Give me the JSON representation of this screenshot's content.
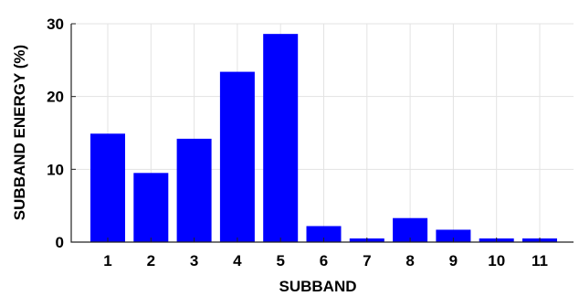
{
  "chart_data": {
    "type": "bar",
    "categories": [
      "1",
      "2",
      "3",
      "4",
      "5",
      "6",
      "7",
      "8",
      "9",
      "10",
      "11"
    ],
    "values": [
      14.9,
      9.5,
      14.2,
      23.4,
      28.6,
      2.2,
      0.5,
      3.3,
      1.7,
      0.5,
      0.5
    ],
    "title": "",
    "xlabel": "SUBBAND",
    "ylabel": "SUBBAND ENERGY (%)",
    "ylim": [
      0,
      30
    ],
    "yticks": [
      "0",
      "10",
      "20",
      "30"
    ],
    "grid": true,
    "bar_color": "#0000ff"
  }
}
